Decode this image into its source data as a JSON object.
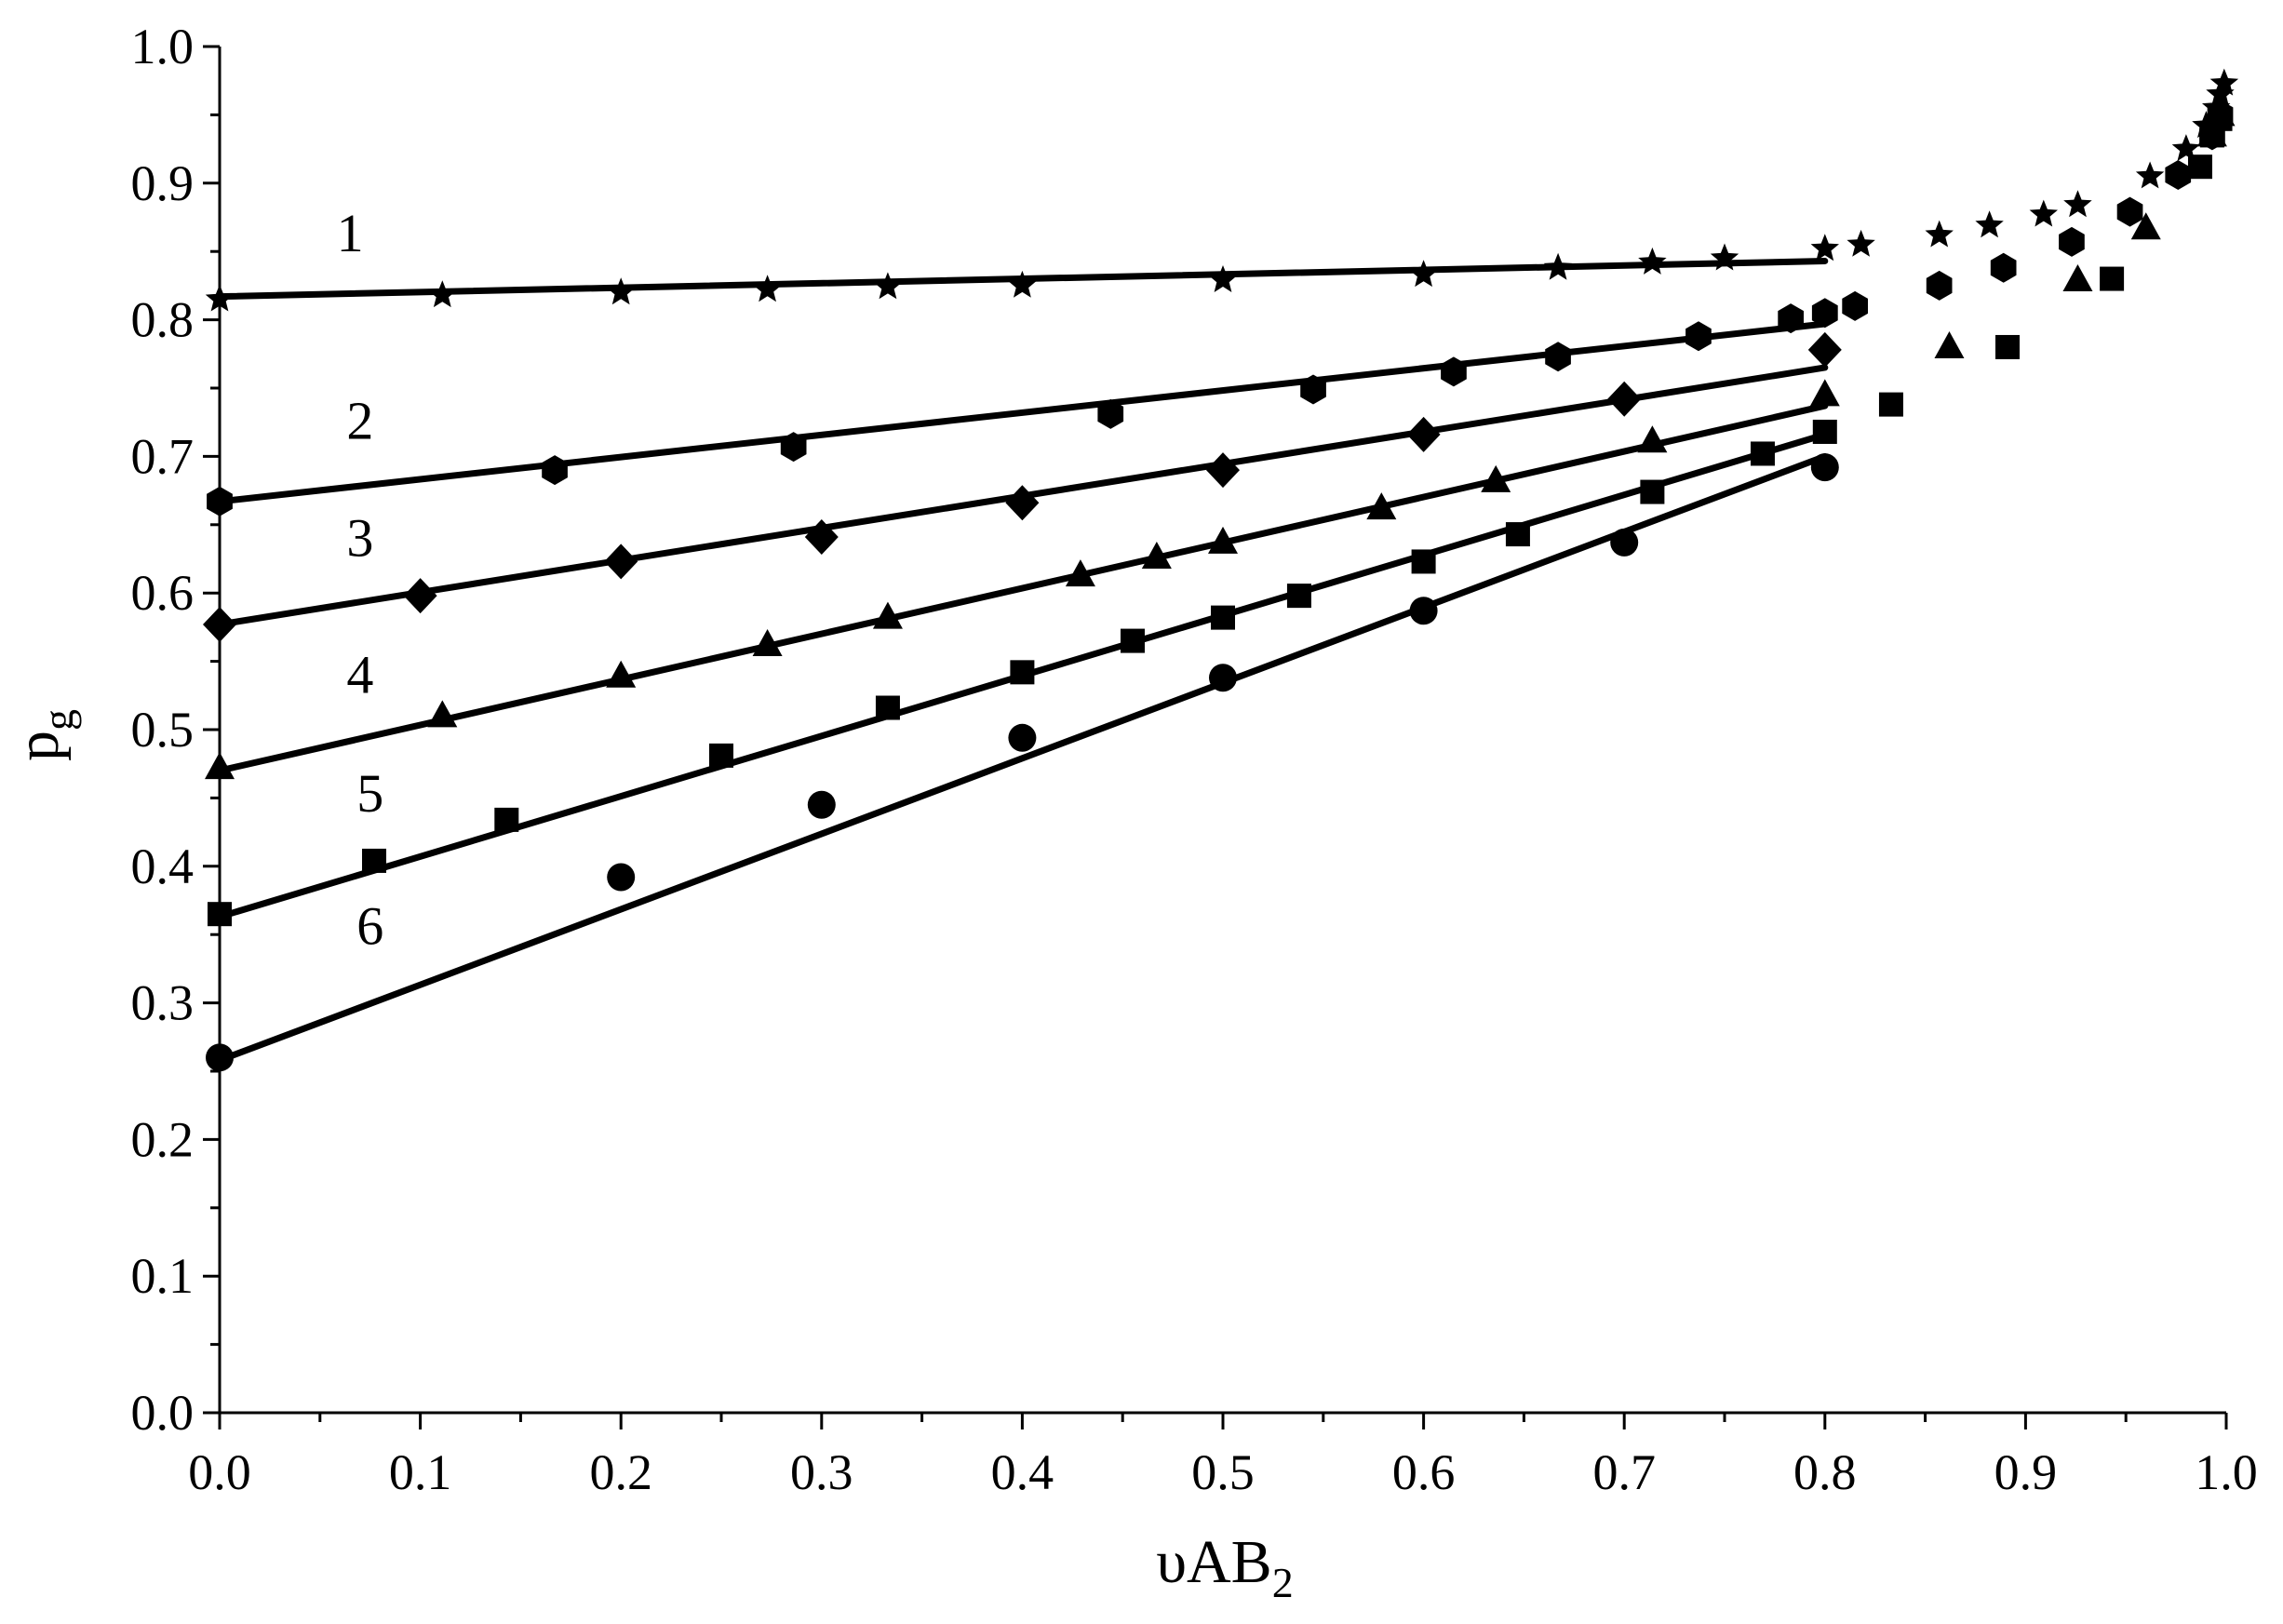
{
  "chart_data": {
    "type": "scatter",
    "xlabel": "υAB",
    "xlabel_sub": "2",
    "ylabel": "p",
    "ylabel_sub": "g",
    "xlim": [
      0.0,
      1.0
    ],
    "ylim": [
      0.0,
      1.0
    ],
    "xticks": [
      "0.0",
      "0.1",
      "0.2",
      "0.3",
      "0.4",
      "0.5",
      "0.6",
      "0.7",
      "0.8",
      "0.9",
      "1.0"
    ],
    "yticks": [
      "0.0",
      "0.1",
      "0.2",
      "0.3",
      "0.4",
      "0.5",
      "0.6",
      "0.7",
      "0.8",
      "0.9",
      "1.0"
    ],
    "grid": false,
    "legend": "none",
    "series": [
      {
        "name": "1",
        "marker": "star",
        "fit": {
          "x": [
            0.0,
            0.8
          ],
          "y": [
            0.817,
            0.843
          ]
        },
        "points": [
          [
            0.0,
            0.815
          ],
          [
            0.111,
            0.818
          ],
          [
            0.2,
            0.82
          ],
          [
            0.273,
            0.822
          ],
          [
            0.333,
            0.824
          ],
          [
            0.4,
            0.825
          ],
          [
            0.5,
            0.829
          ],
          [
            0.6,
            0.833
          ],
          [
            0.667,
            0.838
          ],
          [
            0.714,
            0.842
          ],
          [
            0.75,
            0.845
          ],
          [
            0.8,
            0.852
          ],
          [
            0.818,
            0.855
          ],
          [
            0.857,
            0.862
          ],
          [
            0.882,
            0.869
          ],
          [
            0.909,
            0.877
          ],
          [
            0.926,
            0.884
          ],
          [
            0.962,
            0.905
          ],
          [
            0.98,
            0.925
          ],
          [
            0.99,
            0.942
          ],
          [
            0.995,
            0.955
          ],
          [
            0.997,
            0.965
          ],
          [
            0.999,
            0.973
          ]
        ]
      },
      {
        "name": "2",
        "marker": "hexagon",
        "fit": {
          "x": [
            0.0,
            0.8
          ],
          "y": [
            0.667,
            0.797
          ]
        },
        "points": [
          [
            0.0,
            0.667
          ],
          [
            0.167,
            0.69
          ],
          [
            0.286,
            0.707
          ],
          [
            0.444,
            0.731
          ],
          [
            0.545,
            0.749
          ],
          [
            0.615,
            0.762
          ],
          [
            0.667,
            0.773
          ],
          [
            0.737,
            0.788
          ],
          [
            0.783,
            0.801
          ],
          [
            0.8,
            0.805
          ],
          [
            0.815,
            0.81
          ],
          [
            0.857,
            0.825
          ],
          [
            0.889,
            0.838
          ],
          [
            0.923,
            0.857
          ],
          [
            0.952,
            0.879
          ],
          [
            0.976,
            0.906
          ],
          [
            0.993,
            0.935
          ],
          [
            0.997,
            0.95
          ]
        ]
      },
      {
        "name": "3",
        "marker": "diamond",
        "fit": {
          "x": [
            0.0,
            0.8
          ],
          "y": [
            0.577,
            0.765
          ]
        },
        "points": [
          [
            0.0,
            0.577
          ],
          [
            0.1,
            0.598
          ],
          [
            0.2,
            0.623
          ],
          [
            0.3,
            0.641
          ],
          [
            0.4,
            0.666
          ],
          [
            0.5,
            0.69
          ],
          [
            0.6,
            0.716
          ],
          [
            0.7,
            0.742
          ],
          [
            0.8,
            0.778
          ]
        ]
      },
      {
        "name": "4",
        "marker": "triangle",
        "fit": {
          "x": [
            0.0,
            0.8
          ],
          "y": [
            0.47,
            0.737
          ]
        },
        "points": [
          [
            0.0,
            0.472
          ],
          [
            0.111,
            0.51
          ],
          [
            0.2,
            0.539
          ],
          [
            0.273,
            0.562
          ],
          [
            0.333,
            0.582
          ],
          [
            0.429,
            0.613
          ],
          [
            0.467,
            0.626
          ],
          [
            0.5,
            0.637
          ],
          [
            0.579,
            0.662
          ],
          [
            0.636,
            0.682
          ],
          [
            0.714,
            0.711
          ],
          [
            0.8,
            0.745
          ],
          [
            0.862,
            0.78
          ],
          [
            0.926,
            0.829
          ],
          [
            0.96,
            0.867
          ],
          [
            0.993,
            0.935
          ],
          [
            0.997,
            0.95
          ]
        ]
      },
      {
        "name": "5",
        "marker": "square",
        "fit": {
          "x": [
            0.0,
            0.8
          ],
          "y": [
            0.363,
            0.716
          ]
        },
        "points": [
          [
            0.0,
            0.365
          ],
          [
            0.077,
            0.404
          ],
          [
            0.143,
            0.434
          ],
          [
            0.25,
            0.481
          ],
          [
            0.333,
            0.516
          ],
          [
            0.4,
            0.542
          ],
          [
            0.455,
            0.565
          ],
          [
            0.5,
            0.582
          ],
          [
            0.538,
            0.598
          ],
          [
            0.6,
            0.623
          ],
          [
            0.647,
            0.643
          ],
          [
            0.714,
            0.674
          ],
          [
            0.769,
            0.702
          ],
          [
            0.8,
            0.718
          ],
          [
            0.833,
            0.738
          ],
          [
            0.891,
            0.78
          ],
          [
            0.943,
            0.83
          ],
          [
            0.987,
            0.912
          ],
          [
            0.993,
            0.935
          ],
          [
            0.997,
            0.947
          ]
        ]
      },
      {
        "name": "6",
        "marker": "circle",
        "fit": {
          "x": [
            0.0,
            0.8
          ],
          "y": [
            0.258,
            0.7
          ]
        },
        "points": [
          [
            0.0,
            0.26
          ],
          [
            0.2,
            0.392
          ],
          [
            0.3,
            0.445
          ],
          [
            0.4,
            0.494
          ],
          [
            0.5,
            0.538
          ],
          [
            0.6,
            0.587
          ],
          [
            0.7,
            0.637
          ],
          [
            0.8,
            0.692
          ]
        ]
      }
    ]
  }
}
